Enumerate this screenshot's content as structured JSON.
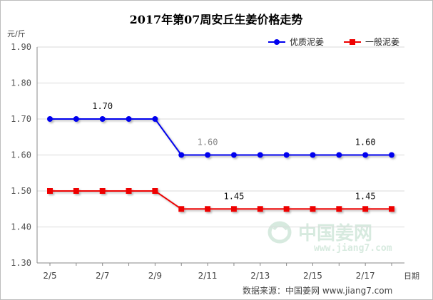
{
  "chart_data": {
    "type": "line",
    "title": "2017年第07周安丘生姜价格走势",
    "ylabel": "元/斤",
    "xlabel": "日期",
    "ylim": [
      1.3,
      1.9
    ],
    "ytick_values": [
      1.3,
      1.4,
      1.5,
      1.6,
      1.7,
      1.8,
      1.9
    ],
    "ytick_labels": [
      "1.30",
      "1.40",
      "1.50",
      "1.60",
      "1.70",
      "1.80",
      "1.90"
    ],
    "xlim": [
      0,
      13.6
    ],
    "x": [
      0,
      1,
      2,
      3,
      4,
      5,
      6,
      7,
      8,
      9,
      10,
      11,
      12,
      13
    ],
    "xtick_positions": [
      0,
      2,
      4,
      6,
      8,
      10,
      12
    ],
    "xtick_labels": [
      "2/5",
      "2/7",
      "2/9",
      "2/11",
      "2/13",
      "2/15",
      "2/17"
    ],
    "series": [
      {
        "name": "优质泥姜",
        "color": "#0000ee",
        "marker": "circle",
        "values": [
          1.7,
          1.7,
          1.7,
          1.7,
          1.7,
          1.6,
          1.6,
          1.6,
          1.6,
          1.6,
          1.6,
          1.6,
          1.6,
          1.6
        ]
      },
      {
        "name": "一般泥姜",
        "color": "#ee0000",
        "marker": "square",
        "values": [
          1.5,
          1.5,
          1.5,
          1.5,
          1.5,
          1.45,
          1.45,
          1.45,
          1.45,
          1.45,
          1.45,
          1.45,
          1.45,
          1.45
        ]
      }
    ],
    "annotations": [
      {
        "text": "1.70",
        "x": 2,
        "y": 1.7,
        "series": 0
      },
      {
        "text": "1.60",
        "x": 6,
        "y": 1.6,
        "series": 0
      },
      {
        "text": "1.60",
        "x": 12,
        "y": 1.6,
        "series": 0
      },
      {
        "text": "1.45",
        "x": 7,
        "y": 1.45,
        "series": 1
      },
      {
        "text": "1.45",
        "x": 12,
        "y": 1.45,
        "series": 1
      }
    ],
    "legend_position": "top-right",
    "grid": true
  },
  "source_note": "数据来源：中国姜网 www.jiang7.com",
  "watermark": {
    "main": "中国姜网",
    "sub": "www.jiang7.com"
  }
}
